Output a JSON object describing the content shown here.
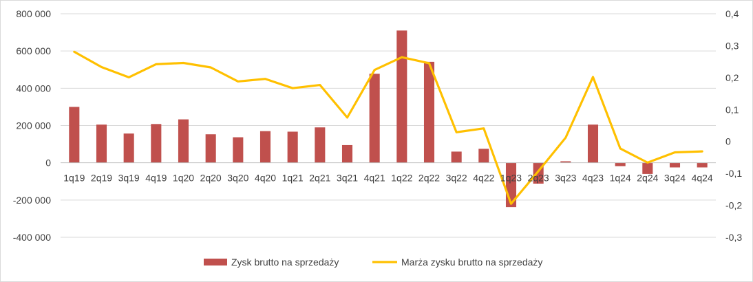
{
  "chart_data": {
    "type": "bar+line",
    "categories": [
      "1q19",
      "2q19",
      "3q19",
      "4q19",
      "1q20",
      "2q20",
      "3q20",
      "4q20",
      "1q21",
      "2q21",
      "3q21",
      "4q21",
      "1q22",
      "2q22",
      "3q22",
      "4q22",
      "1q23",
      "2q23",
      "3q23",
      "4q23",
      "1q24",
      "2q24",
      "3q24",
      "4q24"
    ],
    "series": [
      {
        "name": "Zysk brutto na sprzedaży",
        "kind": "bar",
        "axis": "left",
        "color": "#C0504D",
        "values": [
          300000,
          205000,
          157000,
          208000,
          233000,
          153000,
          137000,
          170000,
          167000,
          190000,
          95000,
          478000,
          710000,
          542000,
          60000,
          75000,
          -238000,
          -112000,
          8000,
          205000,
          -18000,
          -60000,
          -25000,
          -25000
        ]
      },
      {
        "name": "Marża zysku brutto na sprzedaży",
        "kind": "line",
        "axis": "right",
        "color": "#FFC000",
        "values": [
          0.281,
          0.233,
          0.201,
          0.242,
          0.246,
          0.232,
          0.188,
          0.196,
          0.167,
          0.177,
          0.075,
          0.224,
          0.264,
          0.245,
          0.029,
          0.041,
          -0.195,
          -0.093,
          0.012,
          0.202,
          -0.022,
          -0.066,
          -0.034,
          -0.031
        ]
      }
    ],
    "y_left": {
      "min": -400000,
      "max": 800000,
      "step": 200000,
      "tick_labels": [
        "-400 000",
        "-200 000",
        "0",
        "200 000",
        "400 000",
        "600 000",
        "800 000"
      ]
    },
    "y_right": {
      "min": -0.3,
      "max": 0.4,
      "step": 0.1,
      "tick_labels": [
        "-0,3",
        "-0,2",
        "-0,1",
        "0",
        "0,1",
        "0,2",
        "0,3",
        "0,4"
      ]
    },
    "grid": true,
    "legend": "bottom-center",
    "title": "",
    "xlabel": "",
    "ylabel": ""
  }
}
